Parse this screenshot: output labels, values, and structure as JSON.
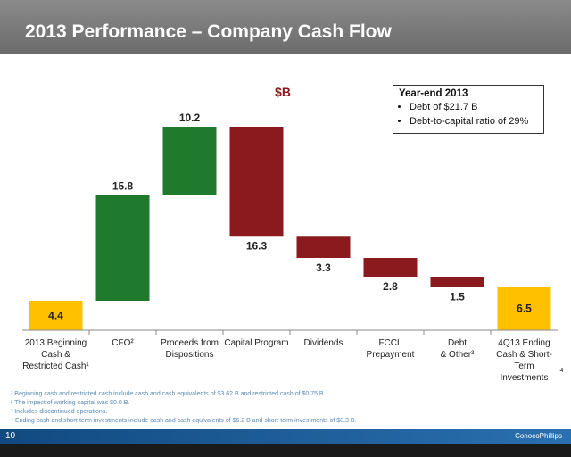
{
  "header": {
    "title": "2013 Performance – Company Cash Flow"
  },
  "unit_label": "$B",
  "note": {
    "title": "Year-end 2013",
    "items": [
      "Debt of $21.7 B",
      "Debt-to-capital ratio of 29%"
    ]
  },
  "chart_data": {
    "type": "bar",
    "subtype": "waterfall",
    "categories": [
      [
        "2013 Beginning",
        "Cash &",
        "Restricted Cash¹"
      ],
      [
        "CFO²"
      ],
      [
        "Proceeds from",
        "Dispositions"
      ],
      [
        "Capital Program"
      ],
      [
        "Dividends"
      ],
      [
        "FCCL",
        "Prepayment"
      ],
      [
        "Debt",
        "& Other³"
      ],
      [
        "4Q13 Ending",
        "Cash & Short-",
        "Term",
        "Investments"
      ]
    ],
    "values": [
      4.4,
      15.8,
      10.2,
      -16.3,
      -3.3,
      -2.8,
      -1.5,
      6.5
    ],
    "value_labels": [
      "4.4",
      "15.8",
      "10.2",
      "16.3",
      "3.3",
      "2.8",
      "1.5",
      "6.5"
    ],
    "kinds": [
      "total",
      "increase",
      "increase",
      "decrease",
      "decrease",
      "decrease",
      "decrease",
      "total"
    ],
    "colors": {
      "total": "#FFC000",
      "increase": "#1F7A2E",
      "decrease": "#8B1A1F"
    },
    "last_label_superscript": "4",
    "ylim": [
      0,
      31
    ]
  },
  "footnotes": [
    "¹ Beginning cash and restricted cash include cash and cash equivalents of $3.62 B and restricted cash of $0.75 B.",
    "² The impact of working capital was $0.0 B.",
    "³ Includes discontinued operations.",
    "⁴ Ending cash and short-term investments include cash and cash equivalents of $6.2 B and short-term investments of $0.3 B."
  ],
  "footer": {
    "page_number": "10",
    "logo": "ConocoPhillips"
  }
}
